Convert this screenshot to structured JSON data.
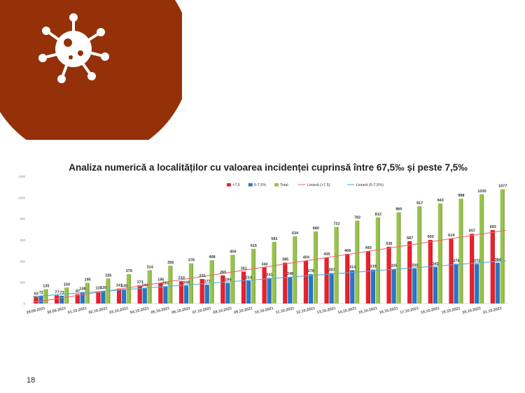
{
  "slide": {
    "page_number": "18"
  },
  "icon": {
    "name": "virus-icon"
  },
  "colors": {
    "accent": "#943109",
    "series_red": "#e8222e",
    "series_blue": "#2a78c8",
    "series_green": "#9ac34e",
    "trend_red": "#ee6a6a",
    "trend_blue": "#5aa8d8"
  },
  "chart_data": {
    "type": "bar",
    "title": "Analiza numerică a localităților cu valoarea incidenței cuprinsă între 67,5‰ și peste 7,5‰",
    "categories": [
      "29.09.2021",
      "30.09.2021",
      "01.10.2021",
      "02.10.2021",
      "03.10.2021",
      "04.10.2021",
      "05.10.2021",
      "06.10.2021",
      "07.10.2021",
      "08.10.2021",
      "09.10.2021",
      "10.10.2021",
      "11.10.2021",
      "12.10.2021",
      "13.10.2021",
      "14.10.2021",
      "15.10.2021",
      "16.10.2021",
      "17.10.2021",
      "18.10.2021",
      "19.10.2021",
      "20.10.2021",
      "21.10.2021"
    ],
    "series": [
      {
        "name": ">7,5",
        "color": "red",
        "values": [
          63,
          77,
          87,
          115,
          141,
          171,
          195,
          210,
          231,
          265,
          301,
          340,
          385,
          404,
          435,
          468,
          493,
          535,
          587,
          600,
          614,
          657,
          693
        ]
      },
      {
        "name": "6-7,5%",
        "color": "blue",
        "values": [
          72,
          73,
          108,
          120,
          135,
          143,
          161,
          168,
          177,
          194,
          214,
          241,
          249,
          276,
          287,
          314,
          319,
          325,
          330,
          343,
          374,
          373,
          384
        ]
      },
      {
        "name": "Total",
        "color": "green",
        "values": [
          135,
          150,
          195,
          235,
          276,
          314,
          356,
          378,
          408,
          459,
          515,
          581,
          634,
          680,
          722,
          782,
          812,
          860,
          917,
          943,
          988,
          1030,
          1077
        ]
      }
    ],
    "trendlines": [
      {
        "name": "Liniară (>7,5)",
        "color": "red"
      },
      {
        "name": "Liniară (6-7,5%)",
        "color": "blue"
      }
    ],
    "yticks": [
      "0",
      "200",
      "400",
      "600",
      "800",
      "1000",
      "1200"
    ],
    "ylim": [
      0,
      1200
    ],
    "legend_position": "top-center",
    "grid": false
  }
}
